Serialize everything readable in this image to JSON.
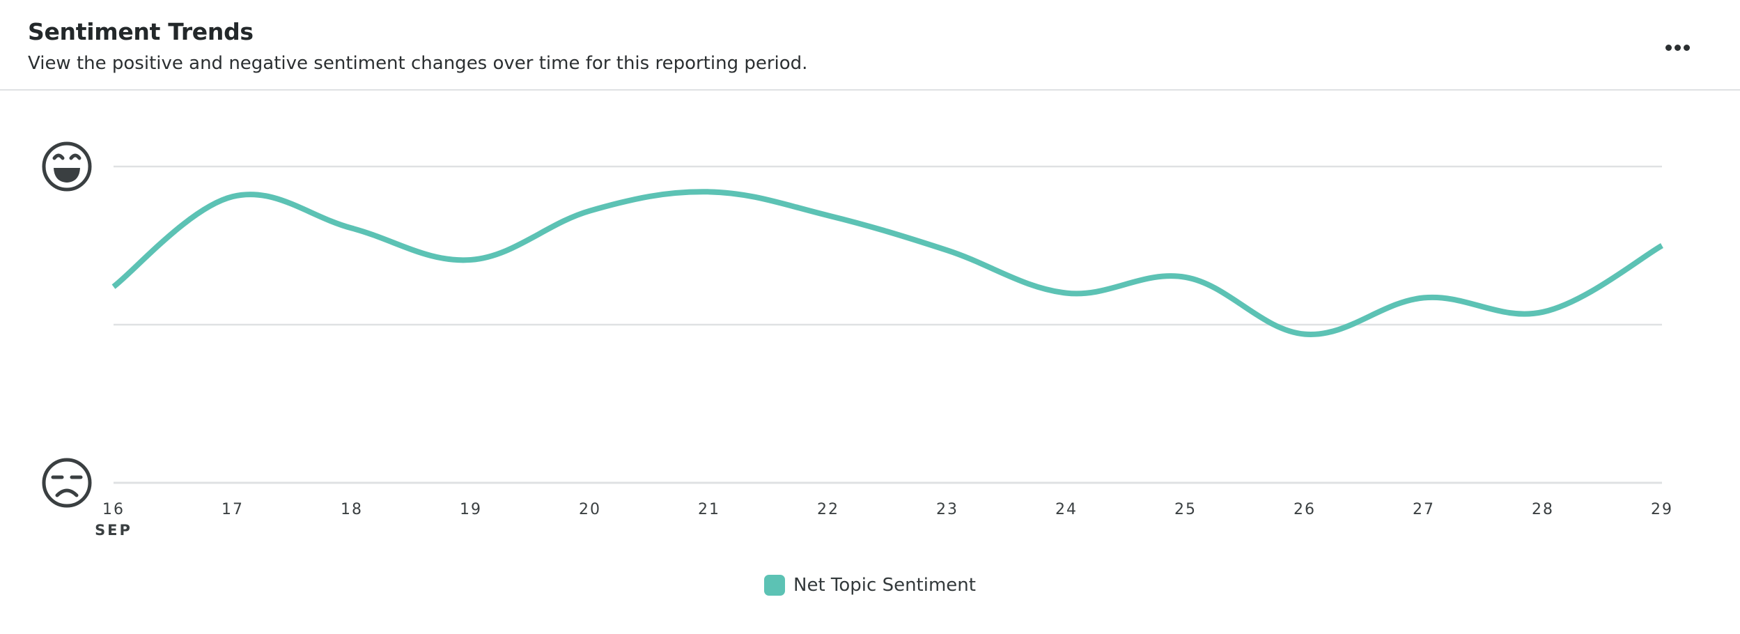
{
  "header": {
    "title": "Sentiment Trends",
    "subtitle": "View the positive and negative sentiment changes over time for this reporting period.",
    "more_icon": "more-horizontal-icon"
  },
  "chart_data": {
    "type": "line",
    "x": [
      16,
      17,
      18,
      19,
      20,
      21,
      22,
      23,
      24,
      25,
      26,
      27,
      28,
      29
    ],
    "x_month_label": "SEP",
    "series": [
      {
        "name": "Net Topic Sentiment",
        "color": "#5cc2b4",
        "values": [
          0.24,
          0.81,
          0.61,
          0.41,
          0.72,
          0.84,
          0.69,
          0.47,
          0.2,
          0.3,
          -0.06,
          0.17,
          0.08,
          0.5
        ]
      }
    ],
    "ylim": [
      -1,
      1
    ],
    "y_gridlines": [
      -1,
      0,
      1
    ],
    "y_axis_icons": {
      "top": "happy-face-icon",
      "bottom": "sad-face-icon"
    },
    "legend_position": "bottom",
    "grid_color": "#dfe1e3"
  }
}
